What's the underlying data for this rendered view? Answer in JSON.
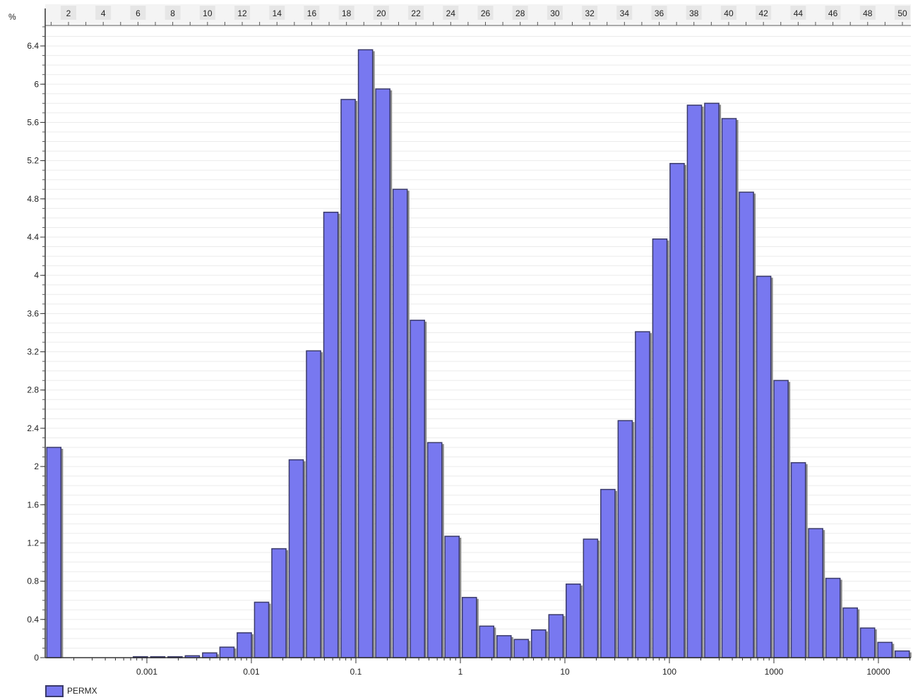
{
  "chart_data": {
    "type": "bar",
    "y_unit_label": "%",
    "ylim": [
      0,
      6.6
    ],
    "y_ticks": [
      "0",
      "0.4",
      "0.8",
      "1.2",
      "1.6",
      "2",
      "2.4",
      "2.8",
      "3.2",
      "3.6",
      "4",
      "4.4",
      "4.8",
      "5.2",
      "5.6",
      "6",
      "6.4"
    ],
    "x_ticks": [
      {
        "label": "0.001",
        "value": 0.001
      },
      {
        "label": "0.01",
        "value": 0.01
      },
      {
        "label": "0.1",
        "value": 0.1
      },
      {
        "label": "1",
        "value": 1
      },
      {
        "label": "10",
        "value": 10
      },
      {
        "label": "100",
        "value": 100
      },
      {
        "label": "1000",
        "value": 1000
      },
      {
        "label": "10000",
        "value": 10000
      }
    ],
    "x_scale": "log",
    "top_axis_ticks": [
      "2",
      "4",
      "6",
      "8",
      "10",
      "12",
      "14",
      "16",
      "18",
      "20",
      "22",
      "24",
      "26",
      "28",
      "30",
      "32",
      "34",
      "36",
      "38",
      "40",
      "42",
      "44",
      "46",
      "48",
      "50"
    ],
    "series": [
      {
        "name": "PERMX",
        "color": "#7878f0",
        "values": [
          2.2,
          0,
          0,
          0,
          0,
          0.01,
          0.01,
          0.01,
          0.02,
          0.05,
          0.11,
          0.26,
          0.58,
          1.14,
          2.07,
          3.21,
          4.66,
          5.84,
          6.36,
          5.95,
          4.9,
          3.53,
          2.25,
          1.27,
          0.63,
          0.33,
          0.23,
          0.19,
          0.29,
          0.45,
          0.77,
          1.24,
          1.76,
          2.48,
          3.41,
          4.38,
          5.17,
          5.78,
          5.8,
          5.64,
          4.87,
          3.99,
          2.9,
          2.04,
          1.35,
          0.83,
          0.52,
          0.31,
          0.16,
          0.07
        ]
      }
    ]
  }
}
